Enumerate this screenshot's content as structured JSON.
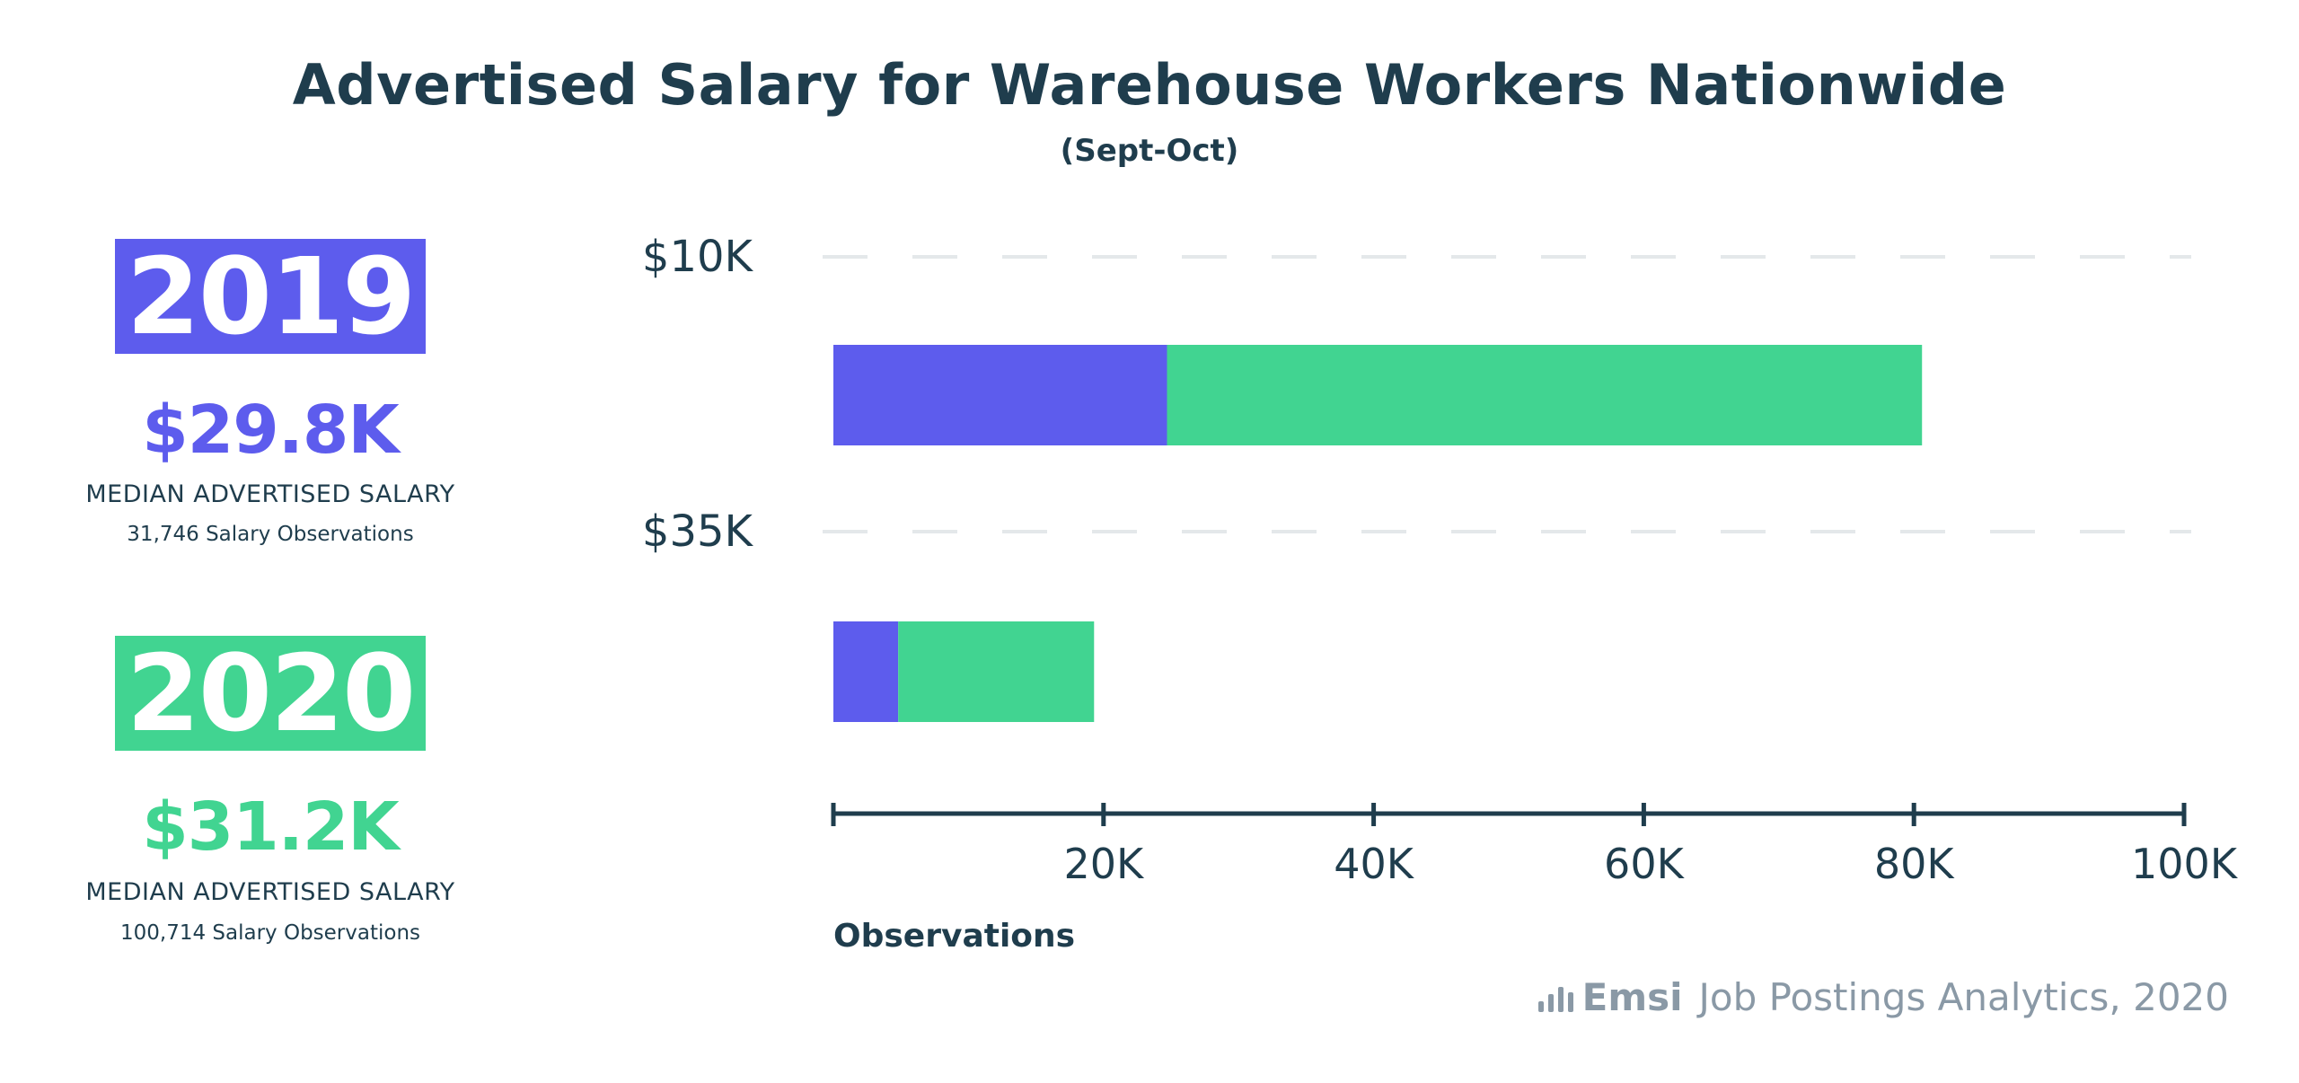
{
  "header": {
    "title": "Advertised Salary for Warehouse Workers Nationwide",
    "subtitle": "(Sept-Oct)"
  },
  "summary": [
    {
      "year": "2019",
      "median": "$29.8K",
      "label": "MEDIAN ADVERTISED SALARY",
      "observations": "31,746 Salary Observations",
      "color": "#5d5ced"
    },
    {
      "year": "2020",
      "median": "$31.2K",
      "label": "MEDIAN ADVERTISED SALARY",
      "observations": "100,714 Salary Observations",
      "color": "#41d491"
    }
  ],
  "chart_data": {
    "type": "bar",
    "orientation": "horizontal",
    "stacked": true,
    "categories": [
      "$10K",
      "$35K"
    ],
    "series": [
      {
        "values": [
          24700,
          4800
        ],
        "color": "#5d5ced"
      },
      {
        "values": [
          55900,
          14500
        ],
        "color": "#41d491"
      }
    ],
    "xlabel": "Observations",
    "xlim": [
      0,
      100000
    ],
    "xticks": [
      20000,
      40000,
      60000,
      80000,
      100000
    ],
    "xtick_labels": [
      "20K",
      "40K",
      "60K",
      "80K",
      "100K"
    ],
    "grid": "dashed horizontal lines at category labels"
  },
  "source": {
    "brand": "Emsi",
    "text": "Job Postings Analytics, 2020",
    "icon": "bar-chart-icon"
  }
}
